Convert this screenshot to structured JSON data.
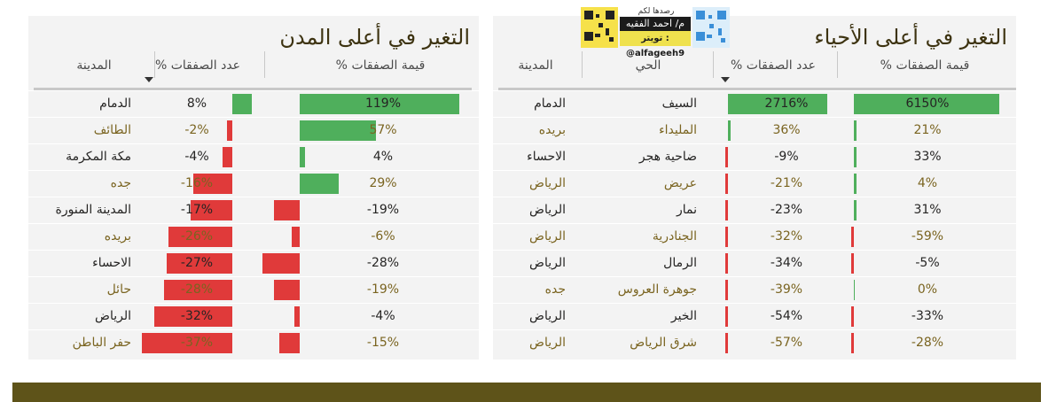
{
  "logo": {
    "top_text": "رصدها لكم",
    "name": "م/ احمد الفقيه",
    "twitter": "تويتر : @alfageeh9"
  },
  "colors": {
    "positive": "#4faf5c",
    "negative": "#e03a3a",
    "footer": "#5e5319",
    "title": "#3d3311",
    "alt_row_text": "#7a6420"
  },
  "chart_data": [
    {
      "type": "table",
      "title": "التغير في أعلى المدن",
      "columns": [
        "المدينة",
        "% عدد الصفقات",
        "% قيمة الصفقات"
      ],
      "sorted_by": "% عدد الصفقات",
      "scale": {
        "count": 37,
        "value": 119
      },
      "rows": [
        {
          "city": "الدمام",
          "count_change": 8,
          "count_label": "8%",
          "value_change": 119,
          "value_label": "119%"
        },
        {
          "city": "الطائف",
          "count_change": -2,
          "count_label": "-2%",
          "value_change": 57,
          "value_label": "57%"
        },
        {
          "city": "مكة المكرمة",
          "count_change": -4,
          "count_label": "-4%",
          "value_change": 4,
          "value_label": "4%"
        },
        {
          "city": "جده",
          "count_change": -16,
          "count_label": "-16%",
          "value_change": 29,
          "value_label": "29%"
        },
        {
          "city": "المدينة المنورة",
          "count_change": -17,
          "count_label": "-17%",
          "value_change": -19,
          "value_label": "-19%"
        },
        {
          "city": "بريده",
          "count_change": -26,
          "count_label": "-26%",
          "value_change": -6,
          "value_label": "-6%"
        },
        {
          "city": "الاحساء",
          "count_change": -27,
          "count_label": "-27%",
          "value_change": -28,
          "value_label": "-28%"
        },
        {
          "city": "حائل",
          "count_change": -28,
          "count_label": "-28%",
          "value_change": -19,
          "value_label": "-19%"
        },
        {
          "city": "الرياض",
          "count_change": -32,
          "count_label": "-32%",
          "value_change": -4,
          "value_label": "-4%"
        },
        {
          "city": "حفر الباطن",
          "count_change": -37,
          "count_label": "-37%",
          "value_change": -15,
          "value_label": "-15%"
        }
      ]
    },
    {
      "type": "table",
      "title": "التغير في أعلى الأحياء",
      "columns": [
        "المدينة",
        "الحي",
        "% عدد الصفقات",
        "% قيمة الصفقات"
      ],
      "sorted_by": "% عدد الصفقات",
      "scale": {
        "count": 2716,
        "value": 6150
      },
      "rows": [
        {
          "city": "الدمام",
          "district": "السيف",
          "count_change": 2716,
          "count_label": "2716%",
          "value_change": 6150,
          "value_label": "6150%"
        },
        {
          "city": "بريده",
          "district": "المليداء",
          "count_change": 36,
          "count_label": "36%",
          "value_change": 21,
          "value_label": "21%"
        },
        {
          "city": "الاحساء",
          "district": "ضاحية هجر",
          "count_change": -9,
          "count_label": "-9%",
          "value_change": 33,
          "value_label": "33%"
        },
        {
          "city": "الرياض",
          "district": "عريض",
          "count_change": -21,
          "count_label": "-21%",
          "value_change": 4,
          "value_label": "4%"
        },
        {
          "city": "الرياض",
          "district": "نمار",
          "count_change": -23,
          "count_label": "-23%",
          "value_change": 31,
          "value_label": "31%"
        },
        {
          "city": "الرياض",
          "district": "الجنادرية",
          "count_change": -32,
          "count_label": "-32%",
          "value_change": -59,
          "value_label": "-59%"
        },
        {
          "city": "الرياض",
          "district": "الرمال",
          "count_change": -34,
          "count_label": "-34%",
          "value_change": -5,
          "value_label": "-5%"
        },
        {
          "city": "جده",
          "district": "جوهرة العروس",
          "count_change": -39,
          "count_label": "-39%",
          "value_change": 0,
          "value_label": "0%"
        },
        {
          "city": "الرياض",
          "district": "الخير",
          "count_change": -54,
          "count_label": "-54%",
          "value_change": -33,
          "value_label": "-33%"
        },
        {
          "city": "الرياض",
          "district": "شرق الرياض",
          "count_change": -57,
          "count_label": "-57%",
          "value_change": -28,
          "value_label": "-28%"
        }
      ]
    }
  ]
}
